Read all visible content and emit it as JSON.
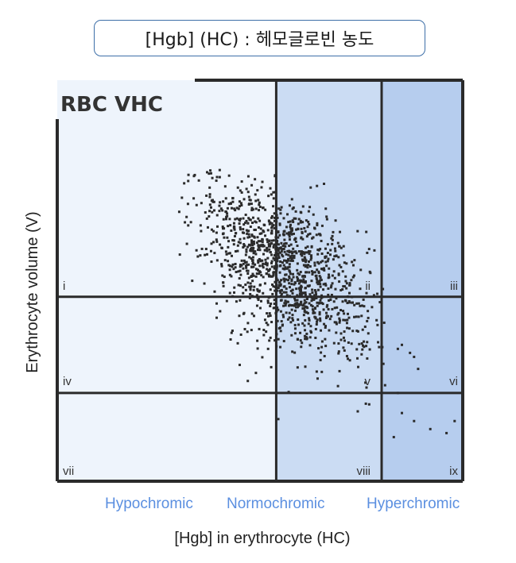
{
  "title": "[Hgb] (HC) : 헤모글로빈 농도",
  "colors": {
    "hypo_bg": "#eef4fc",
    "normo_bg": "#cbdcf3",
    "hyper_bg": "#b6cdee",
    "dots": "#2b2b2b",
    "category_text": "#5b8fe0"
  },
  "chart_data": {
    "type": "scatter",
    "title": "RBC VHC",
    "xlabel": "[Hgb] in erythrocyte (HC)",
    "ylabel": "Erythrocyte volume (V)",
    "xlim": [
      0,
      100
    ],
    "ylim": [
      0,
      100
    ],
    "x_regions": [
      "Hypochromic",
      "Normochromic",
      "Hyperchromic"
    ],
    "x_boundaries": [
      54,
      80
    ],
    "y_boundaries": [
      22,
      46
    ],
    "region_labels": [
      "i",
      "ii",
      "iii",
      "iv",
      "v",
      "vi",
      "vii",
      "viii",
      "ix"
    ],
    "clusters": [
      {
        "cx": 57,
        "cy": 52,
        "sx": 11,
        "sy": 11,
        "n": 1100
      },
      {
        "cx": 51,
        "cy": 61,
        "sx": 8,
        "sy": 9,
        "n": 220
      }
    ],
    "outliers": [
      [
        85,
        34
      ],
      [
        87,
        32
      ],
      [
        88,
        31
      ],
      [
        84,
        33
      ],
      [
        89,
        28
      ],
      [
        84,
        22
      ],
      [
        85,
        17
      ],
      [
        88,
        15
      ],
      [
        92,
        13
      ],
      [
        96,
        12
      ],
      [
        98,
        15
      ],
      [
        83,
        11
      ],
      [
        80,
        10
      ],
      [
        45,
        29
      ],
      [
        47,
        25
      ],
      [
        49,
        27
      ],
      [
        52,
        33
      ],
      [
        43,
        37
      ]
    ]
  }
}
